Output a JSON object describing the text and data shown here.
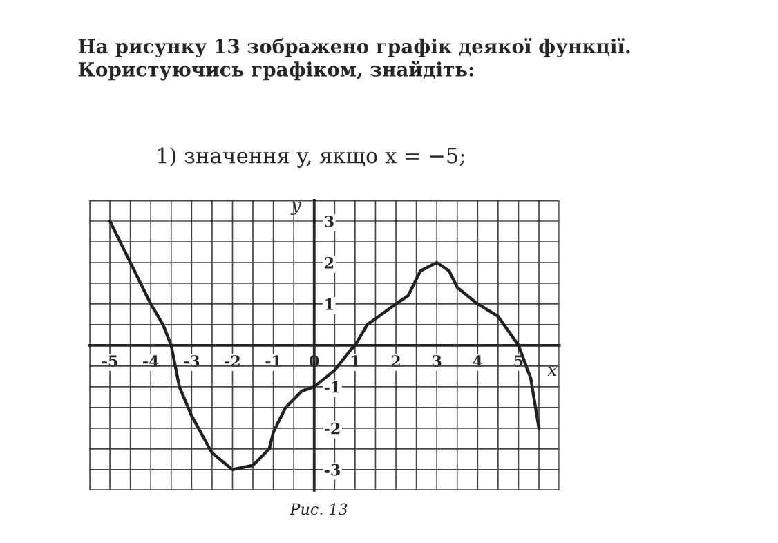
{
  "chart_data": {
    "type": "line",
    "title": "На рисунку 13 зображено графік деякої функції. Користуючись графіком, знайдіть:",
    "subtitle": "1) значення y, якщо x = −5;",
    "annotations": [
      "Рис. 13"
    ],
    "xlabel": "x",
    "ylabel": "y",
    "series": [
      {
        "color": "#222222",
        "x": [
          -5,
          -4.5,
          -4,
          -3.7,
          -3.5,
          -3.3,
          -3,
          -2.5,
          -2,
          -1.5,
          -1.1,
          -1,
          -0.7,
          -0.3,
          0,
          0.5,
          0.9,
          1,
          1.3,
          2,
          2.3,
          2.6,
          3,
          3.3,
          3.5,
          4,
          4.5,
          5,
          5.3,
          5.5
        ],
        "values": [
          3,
          2,
          1,
          0.5,
          0,
          -1,
          -1.7,
          -2.6,
          -3,
          -2.9,
          -2.5,
          -2.1,
          -1.5,
          -1.1,
          -1,
          -0.6,
          -0.1,
          0,
          0.5,
          1,
          1.2,
          1.8,
          2,
          1.8,
          1.4,
          1,
          0.7,
          0,
          -0.8,
          -2
        ]
      }
    ],
    "xlim": [
      -5.5,
      6
    ],
    "ylim": [
      -3.5,
      3.5
    ],
    "xticks": [
      -5,
      -4,
      -3,
      -2,
      -1,
      0,
      1,
      2,
      3,
      4,
      5
    ],
    "yticks": [
      -3,
      -2,
      -1,
      1,
      2,
      3
    ],
    "grid": true,
    "marker": "none",
    "line_style": "solid"
  }
}
